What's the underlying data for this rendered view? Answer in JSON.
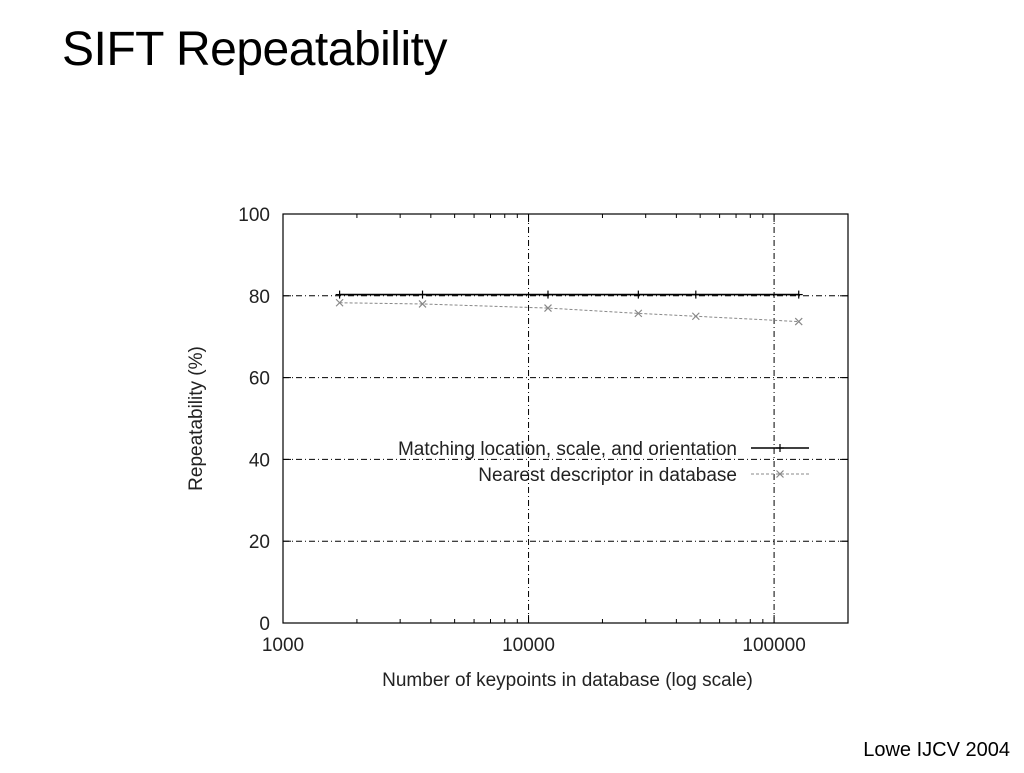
{
  "slide": {
    "title": "SIFT Repeatability",
    "citation": "Lowe IJCV 2004"
  },
  "chart_data": {
    "type": "line",
    "xscale": "log",
    "xlim": [
      1000,
      200000
    ],
    "ylim": [
      0,
      100
    ],
    "xticks": [
      1000,
      10000,
      100000
    ],
    "xtick_labels": [
      "1000",
      "10000",
      "100000"
    ],
    "yticks": [
      0,
      20,
      40,
      60,
      80,
      100
    ],
    "ytick_labels": [
      "0",
      "20",
      "40",
      "60",
      "80",
      "100"
    ],
    "xlabel": "Number of keypoints in database (log scale)",
    "ylabel": "Repeatability (%)",
    "grid": true,
    "legend_position": "center-right",
    "series": [
      {
        "name": "Matching location, scale, and orientation",
        "color": "#000000",
        "marker": "plus",
        "x": [
          1700,
          3700,
          12000,
          28000,
          48000,
          126000
        ],
        "y": [
          80.3,
          80.3,
          80.3,
          80.3,
          80.3,
          80.3
        ]
      },
      {
        "name": "Nearest descriptor in database",
        "color": "#888888",
        "marker": "cross",
        "x": [
          1700,
          3700,
          12000,
          28000,
          48000,
          126000
        ],
        "y": [
          78.3,
          78.0,
          77.0,
          75.7,
          75.0,
          73.7
        ]
      }
    ]
  }
}
